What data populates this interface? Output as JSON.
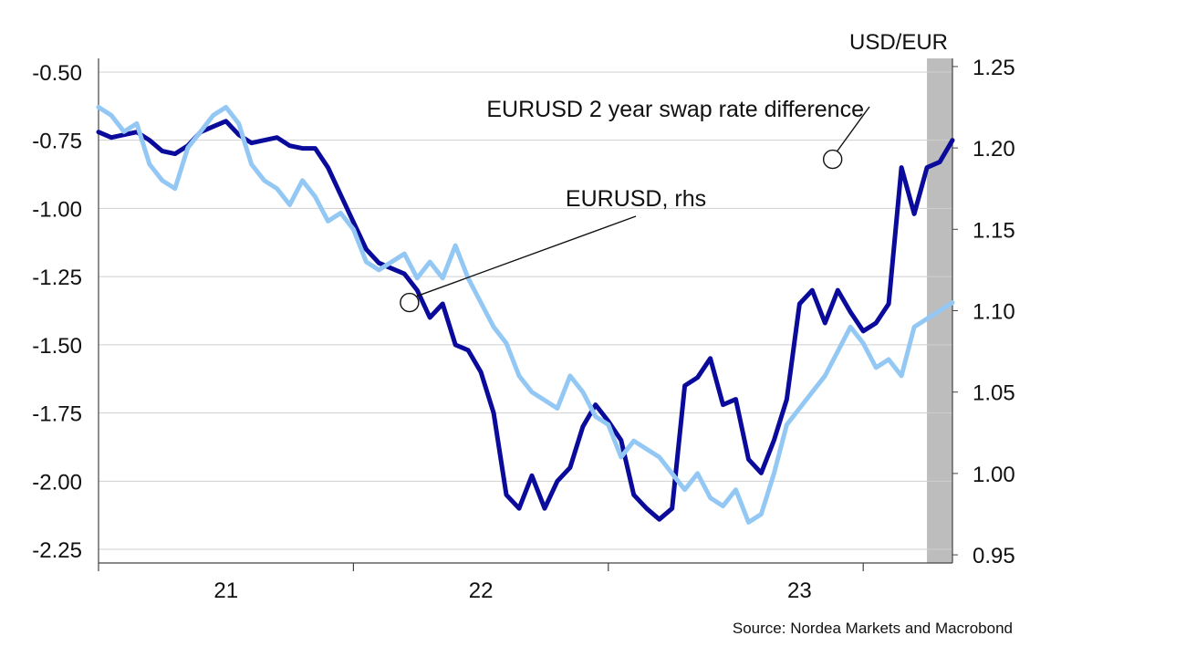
{
  "chart_data": {
    "type": "line",
    "right_axis_title": "USD/EUR",
    "source": "Source: Nordea Markets and Macrobond",
    "x_axis": {
      "start": 2020.0,
      "end": 2023.35,
      "major_ticks": [
        2020.0,
        2021.0,
        2022.0,
        2023.0
      ],
      "labels": [
        {
          "text": "21",
          "x": 2020.5
        },
        {
          "text": "22",
          "x": 2021.5
        },
        {
          "text": "23",
          "x": 2022.75
        }
      ]
    },
    "y_left": {
      "range": [
        -2.3,
        -0.45
      ],
      "ticks": [
        -0.5,
        -0.75,
        -1.0,
        -1.25,
        -1.5,
        -1.75,
        -2.0,
        -2.25
      ],
      "labels": [
        "-0.50",
        "-0.75",
        "-1.00",
        "-1.25",
        "-1.50",
        "-1.75",
        "-2.00",
        "-2.25"
      ]
    },
    "y_right": {
      "range": [
        0.945,
        1.255
      ],
      "ticks": [
        0.95,
        1.0,
        1.05,
        1.1,
        1.15,
        1.2,
        1.25
      ],
      "labels": [
        "0.95",
        "1.00",
        "1.05",
        "1.10",
        "1.15",
        "1.20",
        "1.25"
      ]
    },
    "grid": "horizontal",
    "shaded_period": {
      "start": 2023.25,
      "end": 2023.35,
      "color": "#bdbdbd"
    },
    "annotations": [
      {
        "text": "EURUSD 2 year swap rate difference",
        "series": 0,
        "x": 2022.88,
        "y": -0.82
      },
      {
        "text": "EURUSD, rhs",
        "series": 1,
        "x": 2021.22,
        "y": 1.105
      }
    ],
    "series": [
      {
        "name": "EURUSD 2 year swap rate difference",
        "axis": "left",
        "color": "#0a0a9b",
        "x": [
          2020.0,
          2020.05,
          2020.1,
          2020.15,
          2020.2,
          2020.25,
          2020.3,
          2020.35,
          2020.4,
          2020.45,
          2020.5,
          2020.55,
          2020.6,
          2020.65,
          2020.7,
          2020.75,
          2020.8,
          2020.85,
          2020.9,
          2020.95,
          2021.0,
          2021.05,
          2021.1,
          2021.15,
          2021.2,
          2021.25,
          2021.3,
          2021.35,
          2021.4,
          2021.45,
          2021.5,
          2021.55,
          2021.6,
          2021.65,
          2021.7,
          2021.75,
          2021.8,
          2021.85,
          2021.9,
          2021.95,
          2022.0,
          2022.05,
          2022.1,
          2022.15,
          2022.2,
          2022.25,
          2022.3,
          2022.35,
          2022.4,
          2022.45,
          2022.5,
          2022.55,
          2022.6,
          2022.65,
          2022.7,
          2022.75,
          2022.8,
          2022.85,
          2022.9,
          2022.95,
          2023.0,
          2023.05,
          2023.1,
          2023.15,
          2023.2,
          2023.25,
          2023.3,
          2023.35
        ],
        "y": [
          -0.72,
          -0.74,
          -0.73,
          -0.72,
          -0.75,
          -0.79,
          -0.8,
          -0.77,
          -0.72,
          -0.7,
          -0.68,
          -0.73,
          -0.76,
          -0.75,
          -0.74,
          -0.77,
          -0.78,
          -0.78,
          -0.85,
          -0.95,
          -1.05,
          -1.15,
          -1.2,
          -1.22,
          -1.24,
          -1.3,
          -1.4,
          -1.35,
          -1.5,
          -1.52,
          -1.6,
          -1.75,
          -2.05,
          -2.1,
          -1.98,
          -2.1,
          -2.0,
          -1.95,
          -1.8,
          -1.72,
          -1.78,
          -1.85,
          -2.05,
          -2.1,
          -2.14,
          -2.1,
          -1.65,
          -1.62,
          -1.55,
          -1.72,
          -1.7,
          -1.92,
          -1.97,
          -1.85,
          -1.7,
          -1.35,
          -1.3,
          -1.42,
          -1.3,
          -1.38,
          -1.45,
          -1.42,
          -1.35,
          -0.85,
          -1.02,
          -0.85,
          -0.83,
          -0.75
        ]
      },
      {
        "name": "EURUSD, rhs",
        "axis": "right",
        "color": "#94c8f4",
        "x": [
          2020.0,
          2020.05,
          2020.1,
          2020.15,
          2020.2,
          2020.25,
          2020.3,
          2020.35,
          2020.4,
          2020.45,
          2020.5,
          2020.55,
          2020.6,
          2020.65,
          2020.7,
          2020.75,
          2020.8,
          2020.85,
          2020.9,
          2020.95,
          2021.0,
          2021.05,
          2021.1,
          2021.15,
          2021.2,
          2021.25,
          2021.3,
          2021.35,
          2021.4,
          2021.45,
          2021.5,
          2021.55,
          2021.6,
          2021.65,
          2021.7,
          2021.75,
          2021.8,
          2021.85,
          2021.9,
          2021.95,
          2022.0,
          2022.05,
          2022.1,
          2022.15,
          2022.2,
          2022.25,
          2022.3,
          2022.35,
          2022.4,
          2022.45,
          2022.5,
          2022.55,
          2022.6,
          2022.65,
          2022.7,
          2022.75,
          2022.8,
          2022.85,
          2022.9,
          2022.95,
          2023.0,
          2023.05,
          2023.1,
          2023.15,
          2023.2,
          2023.25,
          2023.3,
          2023.35
        ],
        "y": [
          1.225,
          1.22,
          1.21,
          1.215,
          1.19,
          1.18,
          1.175,
          1.2,
          1.21,
          1.22,
          1.225,
          1.215,
          1.19,
          1.18,
          1.175,
          1.165,
          1.18,
          1.17,
          1.155,
          1.16,
          1.15,
          1.13,
          1.125,
          1.13,
          1.135,
          1.12,
          1.13,
          1.12,
          1.14,
          1.12,
          1.105,
          1.09,
          1.08,
          1.06,
          1.05,
          1.045,
          1.04,
          1.06,
          1.05,
          1.035,
          1.03,
          1.01,
          1.02,
          1.015,
          1.01,
          1.0,
          0.99,
          1.0,
          0.985,
          0.98,
          0.99,
          0.97,
          0.975,
          1.0,
          1.03,
          1.04,
          1.05,
          1.06,
          1.075,
          1.09,
          1.08,
          1.065,
          1.07,
          1.06,
          1.09,
          1.095,
          1.1,
          1.105
        ]
      }
    ]
  }
}
